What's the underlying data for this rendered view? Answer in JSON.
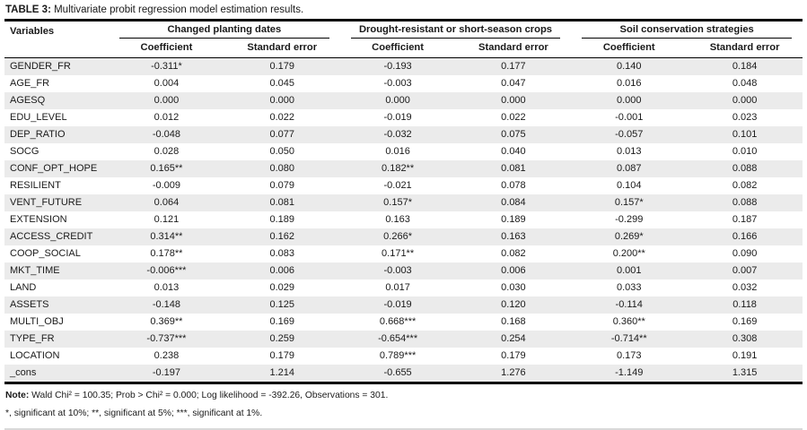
{
  "title": {
    "label": "TABLE 3:",
    "text": " Multivariate probit regression model estimation results."
  },
  "table": {
    "variables_header": "Variables",
    "groups": [
      {
        "label": "Changed planting dates"
      },
      {
        "label": "Drought-resistant or short-season crops"
      },
      {
        "label": "Soil conservation strategies"
      }
    ],
    "sub_headers": [
      "Coefficient",
      "Standard error"
    ],
    "rows": [
      {
        "variable": "GENDER_FR",
        "values": [
          "-0.311*",
          "0.179",
          "-0.193",
          "0.177",
          "0.140",
          "0.184"
        ]
      },
      {
        "variable": "AGE_FR",
        "values": [
          "0.004",
          "0.045",
          "-0.003",
          "0.047",
          "0.016",
          "0.048"
        ]
      },
      {
        "variable": "AGESQ",
        "values": [
          "0.000",
          "0.000",
          "0.000",
          "0.000",
          "0.000",
          "0.000"
        ]
      },
      {
        "variable": "EDU_LEVEL",
        "values": [
          "0.012",
          "0.022",
          "-0.019",
          "0.022",
          "-0.001",
          "0.023"
        ]
      },
      {
        "variable": "DEP_RATIO",
        "values": [
          "-0.048",
          "0.077",
          "-0.032",
          "0.075",
          "-0.057",
          "0.101"
        ]
      },
      {
        "variable": "SOCG",
        "values": [
          "0.028",
          "0.050",
          "0.016",
          "0.040",
          "0.013",
          "0.010"
        ]
      },
      {
        "variable": "CONF_OPT_HOPE",
        "values": [
          "0.165**",
          "0.080",
          "0.182**",
          "0.081",
          "0.087",
          "0.088"
        ]
      },
      {
        "variable": "RESILIENT",
        "values": [
          "-0.009",
          "0.079",
          "-0.021",
          "0.078",
          "0.104",
          "0.082"
        ]
      },
      {
        "variable": "VENT_FUTURE",
        "values": [
          "0.064",
          "0.081",
          "0.157*",
          "0.084",
          "0.157*",
          "0.088"
        ]
      },
      {
        "variable": "EXTENSION",
        "values": [
          "0.121",
          "0.189",
          "0.163",
          "0.189",
          "-0.299",
          "0.187"
        ]
      },
      {
        "variable": "ACCESS_CREDIT",
        "values": [
          "0.314**",
          "0.162",
          "0.266*",
          "0.163",
          "0.269*",
          "0.166"
        ]
      },
      {
        "variable": "COOP_SOCIAL",
        "values": [
          "0.178**",
          "0.083",
          "0.171**",
          "0.082",
          "0.200**",
          "0.090"
        ]
      },
      {
        "variable": "MKT_TIME",
        "values": [
          "-0.006***",
          "0.006",
          "-0.003",
          "0.006",
          "0.001",
          "0.007"
        ]
      },
      {
        "variable": "LAND",
        "values": [
          "0.013",
          "0.029",
          "0.017",
          "0.030",
          "0.033",
          "0.032"
        ]
      },
      {
        "variable": "ASSETS",
        "values": [
          "-0.148",
          "0.125",
          "-0.019",
          "0.120",
          "-0.114",
          "0.118"
        ]
      },
      {
        "variable": "MULTI_OBJ",
        "values": [
          "0.369**",
          "0.169",
          "0.668***",
          "0.168",
          "0.360**",
          "0.169"
        ]
      },
      {
        "variable": "TYPE_FR",
        "values": [
          "-0.737***",
          "0.259",
          "-0.654***",
          "0.254",
          "-0.714**",
          "0.308"
        ]
      },
      {
        "variable": "LOCATION",
        "values": [
          "0.238",
          "0.179",
          "0.789***",
          "0.179",
          "0.173",
          "0.191"
        ]
      },
      {
        "variable": "_cons",
        "values": [
          "-0.197",
          "1.214",
          "-0.655",
          "1.276",
          "-1.149",
          "1.315"
        ]
      }
    ]
  },
  "notes": {
    "note_label": "Note:",
    "note_text": " Wald Chi² = 100.35; Prob > Chi² = 0.000; Log likelihood = -392.26, Observations = 301.",
    "significance": "*, significant at 10%; **, significant at 5%; ***, significant at 1%."
  },
  "colors": {
    "row_shade": "#ebebeb",
    "rule_dark": "#000000",
    "rule_light": "#d9d9d9"
  }
}
